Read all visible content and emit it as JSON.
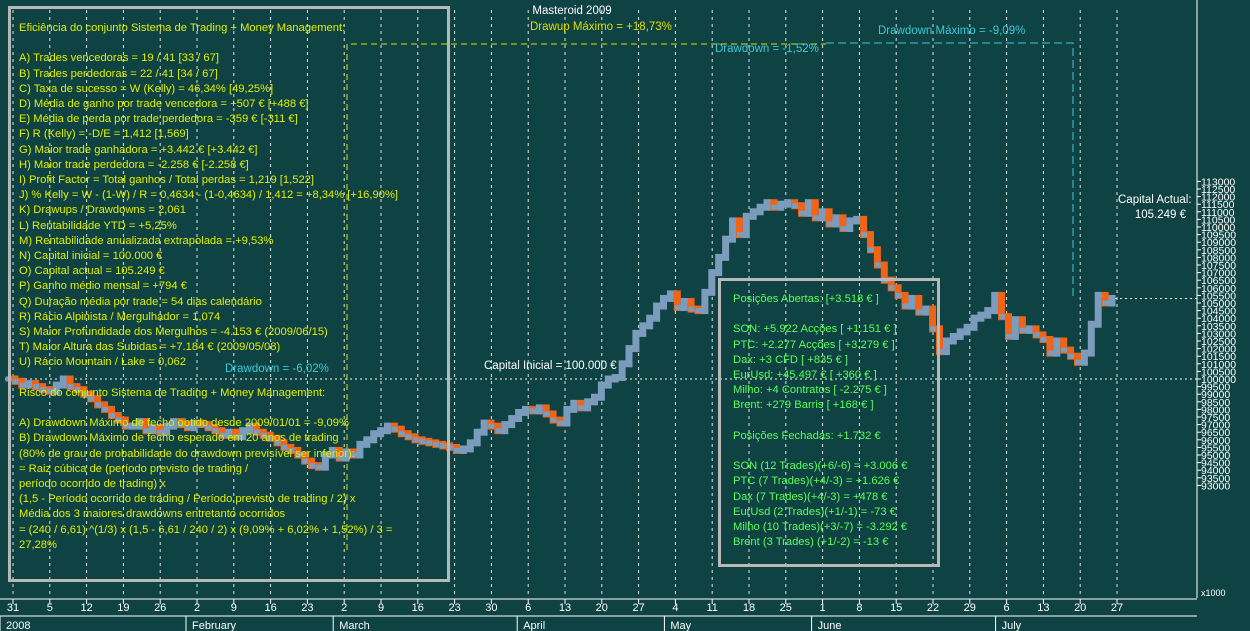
{
  "title": "Masteroid 2009",
  "colors": {
    "background": "#0f4242",
    "up": "#7b9cbd",
    "down": "#f06418",
    "grid": "#ffffff",
    "stats_text": "#e0f000",
    "positions_text": "#59ff59",
    "drawup": "#dede00",
    "drawdown": "#3ec8d8",
    "white": "#ffffff"
  },
  "annotations": {
    "drawup_max": "Drawup Máximo = +18,73%",
    "drawdown_max": "Drawdown Máximo = -9,09%",
    "drawdown_current": "Drawdown = -1,52%",
    "drawdown_early": "Drawdown = -6,02%",
    "capital_initial": "Capital Inicial = 100.000 €",
    "capital_actual_label": "Capital Actual:",
    "capital_actual_value": "105.249 €"
  },
  "stats_panel": {
    "lines": [
      "Eficiência do conjunto Sistema de Trading + Money Management:",
      "",
      "A) Trades vencedoras = 19 / 41   [33 / 67]",
      "B) Trades perdedoras = 22 / 41   [34 / 67]",
      "C) Taxa de sucesso = W (Kelly) = 46,34%   [49,25%]",
      "D) Média de ganho por trade vencedora = +507 €  [+488 €]",
      "E) Média de perda por trade perdedora = -359 €   [-311 €]",
      "F) R (Kelly) = -D/E = 1,412   [1,569]",
      "G) Maior trade ganhadora = +3.442 €   [+3.442 €]",
      "H) Maior trade perdedora = -2.258 €   [-2.258 €]",
      "I) Profit Factor = Total ganhos / Total perdas = 1,219   [1,522]",
      "J) % Kelly = W - (1-W) / R = 0,4634 - (1-0,4634) / 1,412 = +8,34%   [+16,90%]",
      "K) Drawups / Drawdowns = 2,061",
      "L) Rentabilidade YTD = +5,25%",
      "M) Rentabilidade anualizada extrapolada = +9,53%",
      "N) Capital inicial = 100.000 €",
      "O) Capital actual = 105.249 €",
      "P) Ganho médio mensal = +794 €",
      "Q) Duração média por trade = 54 dias calendário",
      "R) Rácio Alpinista / Mergulhador = 1,074",
      "S) Maior Profundidade dos Mergulhos = -4.153 € (2009/06/15)",
      "T) Maior Altura das Subidas = +7.184 € (2009/05/08)",
      "U) Rácio Mountain / Lake = 0,062",
      "",
      "Risco do conjunto Sistema de Trading + Money Management:",
      "",
      "A) Drawdown Máximo de fecho obtido desde 2009/01/01 = -9,09%",
      "B) Drawdown Máximo de fecho esperado em 20 anos de trading",
      "(80% de grau de probabilidade do drawdown previsível ser inferior):",
      "= Raiz cúbica de (período previsto de trading /",
      "período ocorrido de trading) x",
      "(1,5 - Período ocorrido de trading / Período previsto de trading / 2) x",
      "Média dos 3 maiores drawdowns entretanto ocorridos",
      "= (240 / 6,61) ^(1/3) x (1,5 - 6,61 / 240 / 2) x (9,09% + 6,02% + 1,52%) / 3 =",
      "27,28%"
    ]
  },
  "positions_panel": {
    "lines": [
      "Posições Abertas: [+3.518 € ]",
      "",
      "SON: +5.922 Acções [ +1.151 € ]",
      "PTC: +2.277 Acções [ +3.279 € ]",
      "Dax: +3 CFD [ +835 € ]",
      "EurUsd: +45.497 € [ +360 € ]",
      "Milho: +4 Contratos [ -2.275 € ]",
      "Brent: +279 Barris [ +168 € ]",
      "",
      "Posições Fechadas: +1.732 €",
      "",
      "SON (12 Trades)(+6/-6) = +3.006 €",
      "PTC (7 Trades)(+4/-3) = +1.626 €",
      "Dax (7 Trades)(+4/-3) = +478 €",
      "EurUsd (2 Trades)(+1/-1) = -73 €",
      "Milho (10 Trades)(+3/-7) = -3.292 €",
      "Brent (3 Trades) (+1/-2) = -13 €"
    ]
  },
  "x_axis": {
    "day_ticks": [
      "31",
      "5",
      "12",
      "19",
      "26",
      "2",
      "9",
      "16",
      "23",
      "2",
      "9",
      "16",
      "23",
      "30",
      "6",
      "13",
      "20",
      "27",
      "4",
      "11",
      "18",
      "25",
      "1",
      "8",
      "15",
      "22",
      "29",
      "6",
      "13",
      "20",
      "27"
    ],
    "month_labels": [
      "2008",
      "February",
      "March",
      "April",
      "May",
      "June",
      "July"
    ],
    "unit": "x1000"
  },
  "chart_data": {
    "type": "line",
    "style": "step equity curve (up segments blue, down segments orange)",
    "title": "Masteroid 2009",
    "ylim": [
      93000,
      113000
    ],
    "y_tick_step": 500,
    "y_unit": "x1000",
    "grid": true,
    "weeks": [
      "2008-12-31",
      "2009-01-05",
      "2009-01-12",
      "2009-01-19",
      "2009-01-26",
      "2009-02-02",
      "2009-02-09",
      "2009-02-16",
      "2009-02-23",
      "2009-03-02",
      "2009-03-09",
      "2009-03-16",
      "2009-03-23",
      "2009-03-30",
      "2009-04-06",
      "2009-04-13",
      "2009-04-20",
      "2009-04-27",
      "2009-05-04",
      "2009-05-11",
      "2009-05-18",
      "2009-05-25",
      "2009-06-01",
      "2009-06-08",
      "2009-06-15",
      "2009-06-22",
      "2009-06-29",
      "2009-07-06",
      "2009-07-13",
      "2009-07-20",
      "2009-07-27"
    ],
    "values": [
      100000,
      99850,
      99600,
      99700,
      99500,
      99300,
      99200,
      99600,
      100000,
      99500,
      99300,
      99000,
      98700,
      98300,
      98000,
      97600,
      97300,
      96900,
      96900,
      97200,
      96600,
      96800,
      96500,
      96900,
      97200,
      97000,
      96800,
      97100,
      97000,
      96800,
      96600,
      96300,
      96500,
      96200,
      96600,
      96900,
      96500,
      96300,
      96100,
      95800,
      95500,
      95300,
      95000,
      94600,
      94300,
      94200,
      95000,
      95300,
      94800,
      95200,
      95000,
      95700,
      96000,
      96400,
      96600,
      96900,
      96700,
      96400,
      96200,
      96000,
      95900,
      95800,
      95700,
      95600,
      95500,
      95300,
      95400,
      95800,
      96500,
      97100,
      96900,
      96600,
      97000,
      97400,
      97800,
      98000,
      97900,
      98100,
      97700,
      97300,
      97100,
      98000,
      98400,
      98100,
      98500,
      98800,
      99600,
      100000,
      100100,
      101000,
      102000,
      103000,
      103500,
      104000,
      104800,
      105300,
      105600,
      104700,
      105100,
      104600,
      104500,
      105700,
      107000,
      108000,
      109200,
      110400,
      109500,
      110700,
      111000,
      111300,
      111600,
      111300,
      111500,
      111600,
      111400,
      110900,
      111600,
      110600,
      111000,
      110200,
      110600,
      109900,
      110400,
      110500,
      109500,
      108500,
      107500,
      106500,
      106000,
      105500,
      104800,
      105300,
      104400,
      104600,
      103300,
      101800,
      102500,
      102800,
      103100,
      103400,
      104000,
      104200,
      104500,
      105500,
      104100,
      102800,
      103900,
      103200,
      103300,
      102900,
      102600,
      101700,
      102500,
      101900,
      101500,
      101100,
      101700,
      103600,
      105500,
      105000,
      105300
    ]
  }
}
